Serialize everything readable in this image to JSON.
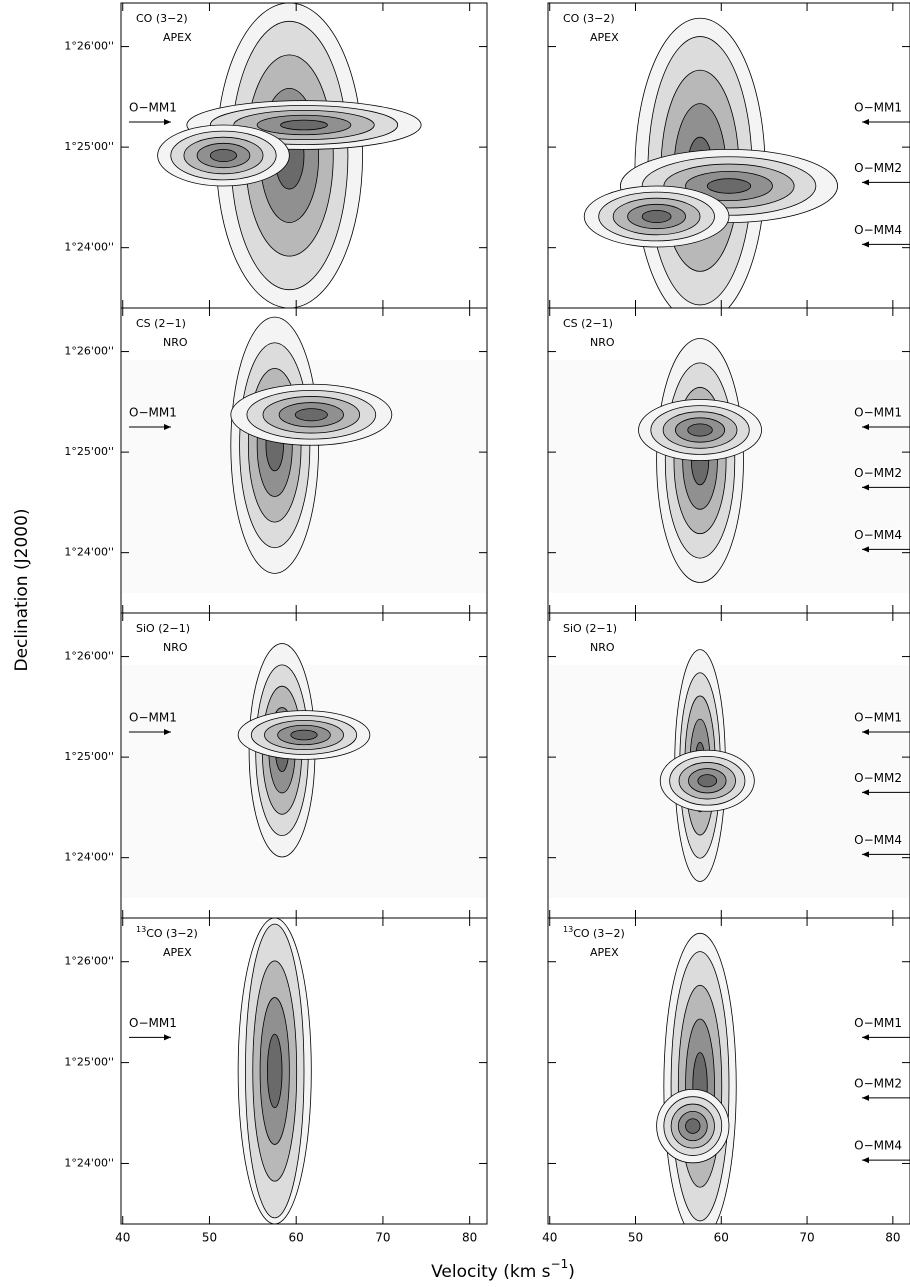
{
  "chart_data": {
    "type": "contour",
    "y_label": "Declination (J2000)",
    "x_label": [
      "Velocity (km s",
      "−1",
      ")"
    ],
    "xlim": [
      39.8,
      82
    ],
    "xticks": [
      40,
      50,
      60,
      70,
      80
    ],
    "ylim": [
      5004,
      5186
    ],
    "yticks": [
      {
        "value": 5040,
        "label": "1°24'00''"
      },
      {
        "value": 5100,
        "label": "1°25'00''"
      },
      {
        "value": 5160,
        "label": "1°26'00''"
      }
    ],
    "rows": [
      {
        "species": "CO (3−2)",
        "telescope": "APEX"
      },
      {
        "species": "CS (2−1)",
        "telescope": "NRO"
      },
      {
        "species": "SiO (2−1)",
        "telescope": "NRO"
      },
      {
        "isotope": "13",
        "species": "CO (3−2)",
        "telescope": "APEX"
      }
    ],
    "columns": [
      {
        "sources": [
          {
            "name": "O−MM1",
            "dec": 5115
          }
        ]
      },
      {
        "sources": [
          {
            "name": "O−MM1",
            "dec": 5115
          },
          {
            "name": "O−MM2",
            "dec": 5079
          },
          {
            "name": "O−MM4",
            "dec": 5042
          }
        ]
      }
    ]
  }
}
